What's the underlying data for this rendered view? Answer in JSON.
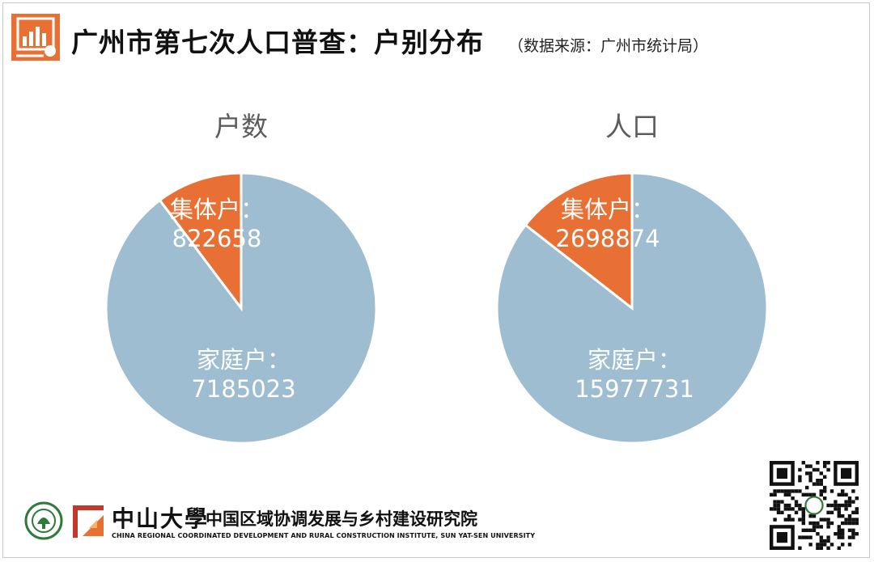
{
  "header": {
    "title": "广州市第七次人口普查：户别分布",
    "subtitle": "（数据来源：广州市统计局）"
  },
  "colors": {
    "accent": "#e87035",
    "slice_family": "#9ebdd0",
    "slice_collective": "#e87035",
    "label_text": "#ffffff",
    "chart_title": "#5b5b5b"
  },
  "chart_data": [
    {
      "type": "pie",
      "title": "户数",
      "categories": [
        "家庭户",
        "集体户"
      ],
      "values": [
        7185023,
        822658
      ],
      "labels": [
        "家庭户：",
        "集体户："
      ]
    },
    {
      "type": "pie",
      "title": "人口",
      "categories": [
        "家庭户",
        "集体户"
      ],
      "values": [
        15977731,
        2698874
      ],
      "labels": [
        "家庭户：",
        "集体户："
      ]
    }
  ],
  "footer": {
    "university": "中山大學",
    "institute": "中国区域协调发展与乡村建设研究院",
    "institute_en": "CHINA REGIONAL COORDINATED DEVELOPMENT AND RURAL CONSTRUCTION INSTITUTE, SUN YAT-SEN UNIVERSITY",
    "logo_icon": "university-seal-icon",
    "mark_icon": "institute-mark-icon",
    "qr_icon": "qr-code-icon"
  }
}
